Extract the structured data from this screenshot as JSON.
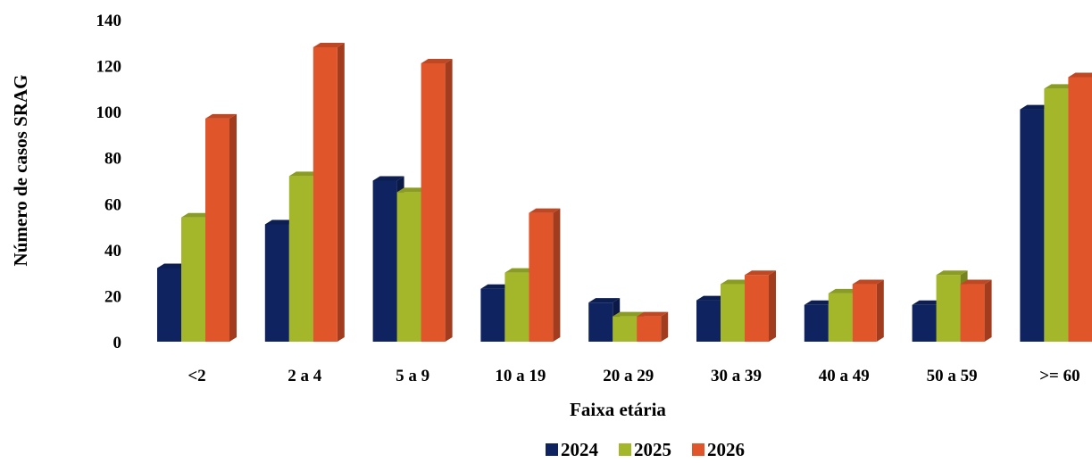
{
  "chart_data": {
    "type": "bar",
    "xlabel": "Faixa etária",
    "ylabel": "Número de casos SRAG",
    "ylim": [
      0,
      140
    ],
    "yticks": [
      0,
      20,
      40,
      60,
      80,
      100,
      120,
      140
    ],
    "grid": false,
    "legend_position": "bottom-center",
    "categories": [
      "<2",
      "2 a 4",
      "5 a 9",
      "10 a 19",
      "20 a 29",
      "30 a 39",
      "40 a 49",
      "50 a 59",
      ">= 60"
    ],
    "series": [
      {
        "name": "2024",
        "color": "#0E2360",
        "values": [
          32,
          51,
          70,
          23,
          17,
          18,
          16,
          16,
          101
        ]
      },
      {
        "name": "2025",
        "color": "#A4B72A",
        "values": [
          54,
          72,
          65,
          30,
          11,
          25,
          21,
          29,
          110
        ]
      },
      {
        "name": "2026",
        "color": "#E0552A",
        "values": [
          97,
          128,
          121,
          56,
          11,
          29,
          25,
          25,
          115
        ]
      }
    ]
  }
}
